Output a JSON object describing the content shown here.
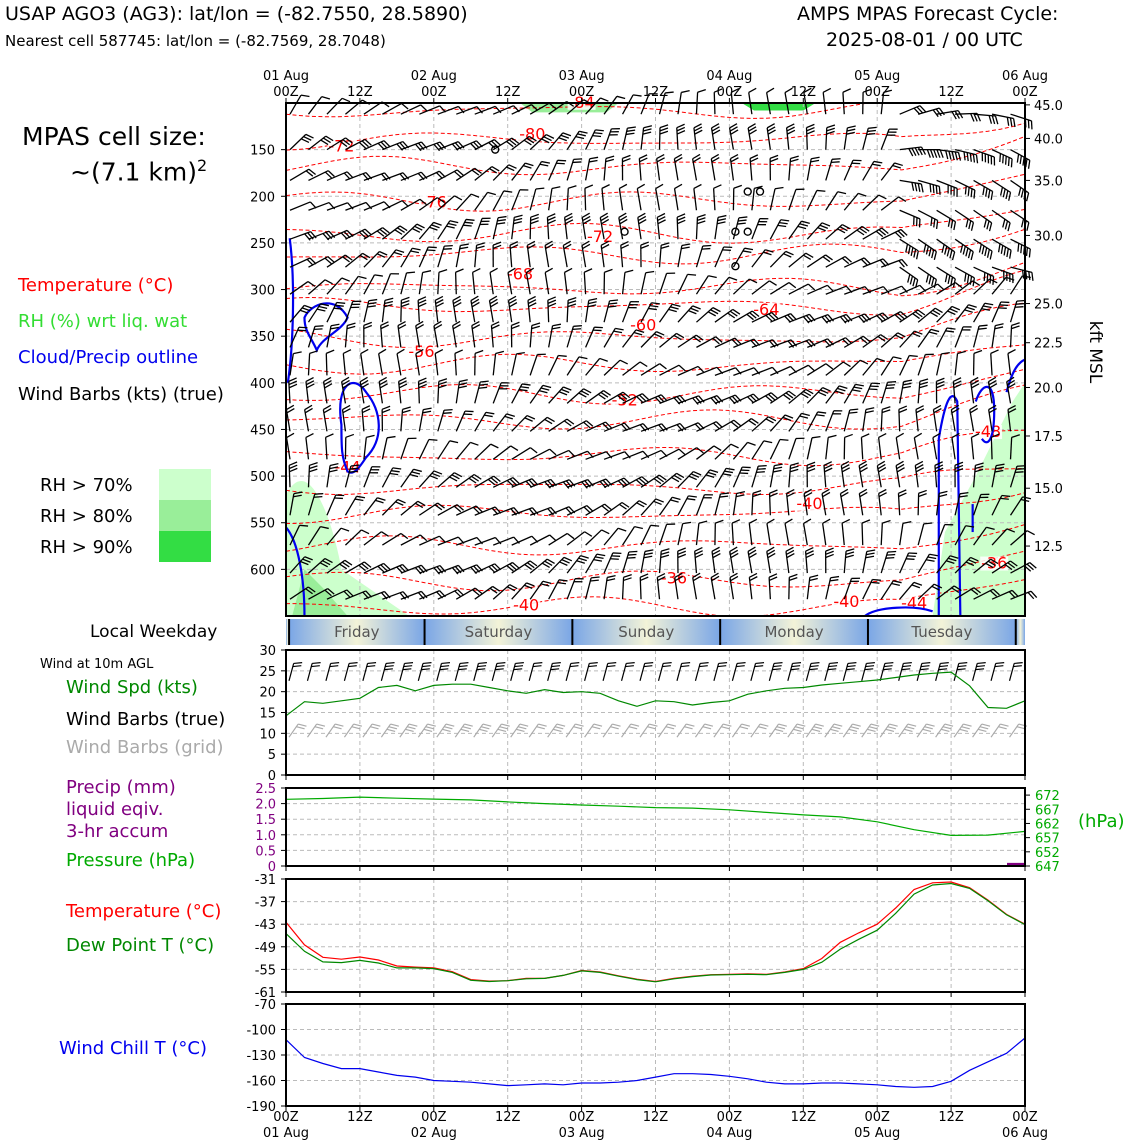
{
  "header": {
    "title_left": "USAP AGO3 (AG3): lat/lon = (-82.7550, 28.5890)",
    "subtitle_left": "Nearest cell 587745: lat/lon = (-82.7569, 28.7048)",
    "title_right_1": "AMPS MPAS Forecast Cycle:",
    "title_right_2": "2025-08-01 / 00 UTC"
  },
  "left_panel": {
    "cell_size_1": "MPAS cell size:",
    "cell_size_2": "~(7.1 km)",
    "cell_size_sup": "2",
    "legend_temperature": "Temperature (°C)",
    "legend_rh": "RH (%) wrt liq. wat",
    "legend_cloud": "Cloud/Precip outline",
    "legend_wind": "Wind Barbs (kts) (true)",
    "rh70": "RH > 70%",
    "rh80": "RH > 80%",
    "rh90": "RH > 90%",
    "local_weekday": "Local Weekday",
    "wind_10m": "Wind at 10m AGL",
    "wind_spd": "Wind Spd (kts)",
    "wind_barbs_true": "Wind Barbs (true)",
    "wind_barbs_grid": "Wind Barbs (grid)",
    "precip_1": "Precip (mm)",
    "precip_2": "liquid eqiv.",
    "precip_3": "3-hr accum",
    "pressure": "Pressure (hPa)",
    "temperature": "Temperature (°C)",
    "dewpoint": "Dew Point T (°C)",
    "windchill": "Wind Chill T (°C)"
  },
  "colors": {
    "temperature": "#ff0000",
    "rh_legend": "#33dd33",
    "rh70": "#ccffcc",
    "rh80": "#99ee99",
    "rh90": "#33dd44",
    "cloud": "#0000ee",
    "wind_speed": "#008800",
    "wind_grid": "#aaaaaa",
    "precip": "#800080",
    "pressure": "#00aa00",
    "dewpoint": "#008800",
    "windchill": "#0000ee"
  },
  "chart_data": [
    {
      "type": "line",
      "id": "profile",
      "x_top_labels": [
        {
          "t": 0,
          "date": "01 Aug",
          "time": "00Z"
        },
        {
          "t": 12,
          "date": "",
          "time": "12Z"
        },
        {
          "t": 24,
          "date": "02 Aug",
          "time": "00Z"
        },
        {
          "t": 36,
          "date": "",
          "time": "12Z"
        },
        {
          "t": 48,
          "date": "03 Aug",
          "time": "00Z"
        },
        {
          "t": 60,
          "date": "",
          "time": "12Z"
        },
        {
          "t": 72,
          "date": "04 Aug",
          "time": "00Z"
        },
        {
          "t": 84,
          "date": "",
          "time": "12Z"
        },
        {
          "t": 96,
          "date": "05 Aug",
          "time": "00Z"
        },
        {
          "t": 108,
          "date": "",
          "time": "12Z"
        },
        {
          "t": 120,
          "date": "06 Aug",
          "time": "00Z"
        }
      ],
      "ylim": [
        650,
        100
      ],
      "yticks": [
        150,
        200,
        250,
        300,
        350,
        400,
        450,
        500,
        550,
        600
      ],
      "right_axis_label": "kft MSL",
      "right_ticks": [
        {
          "p": 102,
          "label": "45.0"
        },
        {
          "p": 138,
          "label": "40.0"
        },
        {
          "p": 183,
          "label": "35.0"
        },
        {
          "p": 242,
          "label": "30.0"
        },
        {
          "p": 315,
          "label": "25.0"
        },
        {
          "p": 357,
          "label": "22.5"
        },
        {
          "p": 405,
          "label": "20.0"
        },
        {
          "p": 457,
          "label": "17.5"
        },
        {
          "p": 513,
          "label": "15.0"
        },
        {
          "p": 575,
          "label": "12.5"
        }
      ],
      "temperature_labels": [
        {
          "t": 48,
          "p": 103,
          "v": "-84"
        },
        {
          "t": 40,
          "p": 137,
          "v": "-80"
        },
        {
          "t": 9,
          "p": 150,
          "v": "-72"
        },
        {
          "t": 24,
          "p": 210,
          "v": "-76"
        },
        {
          "t": 51,
          "p": 247,
          "v": "-72"
        },
        {
          "t": 38,
          "p": 287,
          "v": "-68"
        },
        {
          "t": 78,
          "p": 325,
          "v": "-64"
        },
        {
          "t": 58,
          "p": 342,
          "v": "-60"
        },
        {
          "t": 22,
          "p": 370,
          "v": "-56"
        },
        {
          "t": 55,
          "p": 422,
          "v": "-52"
        },
        {
          "t": 114,
          "p": 456,
          "v": "-48"
        },
        {
          "t": 10,
          "p": 494,
          "v": "-44"
        },
        {
          "t": 85,
          "p": 533,
          "v": "-40"
        },
        {
          "t": 63,
          "p": 613,
          "v": "-36"
        },
        {
          "t": 115,
          "p": 597,
          "v": "-36"
        },
        {
          "t": 39,
          "p": 642,
          "v": "-40"
        },
        {
          "t": 91,
          "p": 638,
          "v": "-40"
        },
        {
          "t": 102,
          "p": 640,
          "v": "-44"
        }
      ]
    },
    {
      "type": "line",
      "id": "wind10m",
      "ylim": [
        0,
        30
      ],
      "yticks": [
        0,
        5,
        10,
        15,
        20,
        25,
        30
      ],
      "x": [
        0,
        3,
        6,
        9,
        12,
        15,
        18,
        21,
        24,
        27,
        30,
        33,
        36,
        39,
        42,
        45,
        48,
        51,
        54,
        57,
        60,
        63,
        66,
        69,
        72,
        75,
        78,
        81,
        84,
        87,
        90,
        93,
        96,
        99,
        102,
        105,
        108,
        111,
        114,
        117,
        120
      ],
      "series": [
        {
          "values": [
            14.2,
            17.6,
            17.2,
            17.8,
            18.4,
            21.0,
            21.5,
            20.2,
            21.5,
            21.8,
            21.8,
            21.0,
            20.2,
            19.6,
            20.5,
            19.8,
            20.0,
            19.6,
            17.8,
            16.5,
            17.8,
            17.6,
            16.8,
            17.4,
            17.8,
            19.4,
            20.2,
            20.8,
            21.0,
            21.6,
            22.0,
            22.4,
            22.8,
            23.4,
            24.0,
            24.4,
            24.7,
            21.4,
            16.2,
            16.0,
            17.8
          ]
        }
      ]
    },
    {
      "type": "line",
      "id": "precip_pressure",
      "precip_ylim": [
        0,
        2.5
      ],
      "precip_ticks": [
        "0",
        "0.5",
        "1.0",
        "1.5",
        "2.0",
        "2.5"
      ],
      "pressure_ticks": [
        "647",
        "652",
        "657",
        "662",
        "667",
        "672"
      ],
      "pressure_ylim": [
        647,
        674.5
      ],
      "pressure_label": "(hPa)",
      "x": [
        0,
        6,
        12,
        18,
        24,
        30,
        36,
        42,
        48,
        54,
        60,
        66,
        72,
        78,
        84,
        90,
        96,
        102,
        108,
        114,
        120
      ],
      "series": [
        {
          "name": "Pressure",
          "values": [
            670.5,
            670.8,
            671.3,
            670.9,
            670.6,
            670.3,
            669.6,
            669.0,
            668.5,
            668.1,
            667.6,
            667.4,
            666.8,
            665.9,
            665.0,
            664.3,
            662.6,
            659.8,
            657.8,
            657.9,
            659.2
          ]
        },
        {
          "name": "Precip",
          "values": [
            0,
            0,
            0,
            0,
            0,
            0,
            0,
            0,
            0,
            0,
            0,
            0,
            0,
            0,
            0,
            0,
            0,
            0,
            0,
            0,
            0.1
          ]
        }
      ]
    },
    {
      "type": "line",
      "id": "temp_dew",
      "ylim": [
        -61,
        -31
      ],
      "yticks": [
        "-31",
        "-37",
        "-43",
        "-49",
        "-55",
        "-61"
      ],
      "x": [
        0,
        3,
        6,
        9,
        12,
        15,
        18,
        21,
        24,
        27,
        30,
        33,
        36,
        39,
        42,
        45,
        48,
        51,
        54,
        57,
        60,
        63,
        66,
        69,
        72,
        75,
        78,
        81,
        84,
        87,
        90,
        93,
        96,
        99,
        102,
        105,
        108,
        111,
        114,
        117,
        120
      ],
      "series": [
        {
          "name": "Temperature",
          "values": [
            -42.5,
            -48.5,
            -51.8,
            -52.3,
            -51.7,
            -52.5,
            -54.1,
            -54.4,
            -54.6,
            -55.6,
            -57.7,
            -58.1,
            -58.0,
            -57.4,
            -57.4,
            -56.6,
            -55.3,
            -55.7,
            -56.7,
            -57.6,
            -58.2,
            -57.4,
            -56.8,
            -56.4,
            -56.3,
            -56.2,
            -56.3,
            -55.7,
            -54.8,
            -52.1,
            -47.8,
            -45.3,
            -43.0,
            -38.7,
            -33.8,
            -32.0,
            -31.8,
            -33.3,
            -36.6,
            -40.4,
            -43.0
          ]
        },
        {
          "name": "Dew Point",
          "values": [
            -45.5,
            -50.2,
            -53.0,
            -53.2,
            -52.6,
            -53.3,
            -54.6,
            -54.6,
            -54.8,
            -55.8,
            -57.9,
            -58.2,
            -58.0,
            -57.5,
            -57.4,
            -56.6,
            -55.4,
            -55.8,
            -56.8,
            -57.7,
            -58.3,
            -57.5,
            -56.9,
            -56.5,
            -56.4,
            -56.3,
            -56.4,
            -55.8,
            -55.0,
            -53.1,
            -49.6,
            -47.0,
            -44.6,
            -40.1,
            -35.0,
            -32.6,
            -32.2,
            -33.5,
            -36.8,
            -40.5,
            -43.1
          ]
        }
      ]
    },
    {
      "type": "line",
      "id": "windchill",
      "ylim": [
        -190,
        -70
      ],
      "yticks": [
        "-70",
        "-100",
        "-130",
        "-160",
        "-190"
      ],
      "x_bottom_labels": [
        {
          "t": 0,
          "time": "00Z",
          "date": "01 Aug"
        },
        {
          "t": 12,
          "time": "12Z",
          "date": ""
        },
        {
          "t": 24,
          "time": "00Z",
          "date": "02 Aug"
        },
        {
          "t": 36,
          "time": "12Z",
          "date": ""
        },
        {
          "t": 48,
          "time": "00Z",
          "date": "03 Aug"
        },
        {
          "t": 60,
          "time": "12Z",
          "date": ""
        },
        {
          "t": 72,
          "time": "00Z",
          "date": "04 Aug"
        },
        {
          "t": 84,
          "time": "12Z",
          "date": ""
        },
        {
          "t": 96,
          "time": "00Z",
          "date": "05 Aug"
        },
        {
          "t": 108,
          "time": "12Z",
          "date": ""
        },
        {
          "t": 120,
          "time": "00Z",
          "date": "06 Aug"
        }
      ],
      "x": [
        0,
        3,
        6,
        9,
        12,
        15,
        18,
        21,
        24,
        27,
        30,
        33,
        36,
        39,
        42,
        45,
        48,
        51,
        54,
        57,
        60,
        63,
        66,
        69,
        72,
        75,
        78,
        81,
        84,
        87,
        90,
        93,
        96,
        99,
        102,
        105,
        108,
        111,
        114,
        117,
        120
      ],
      "series": [
        {
          "name": "Wind Chill",
          "values": [
            -112,
            -133,
            -140,
            -146,
            -146,
            -150,
            -154,
            -156,
            -160,
            -161,
            -162,
            -164,
            -166,
            -165,
            -164,
            -165,
            -163,
            -163,
            -162,
            -160,
            -156,
            -152,
            -152,
            -153,
            -155,
            -158,
            -162,
            -164,
            -164,
            -163,
            -163,
            -164,
            -165,
            -167,
            -168,
            -167,
            -161,
            -148,
            -138,
            -128,
            -110
          ]
        }
      ]
    }
  ],
  "weekdays": [
    {
      "t0": 0,
      "t1": 0.5,
      "label": ""
    },
    {
      "t0": 0.5,
      "t1": 22.5,
      "label": "Friday"
    },
    {
      "t0": 22.5,
      "t1": 46.5,
      "label": "Saturday"
    },
    {
      "t0": 46.5,
      "t1": 70.5,
      "label": "Sunday"
    },
    {
      "t0": 70.5,
      "t1": 94.5,
      "label": "Monday"
    },
    {
      "t0": 94.5,
      "t1": 118.5,
      "label": "Tuesday"
    },
    {
      "t0": 118.5,
      "t1": 120,
      "label": ""
    }
  ]
}
